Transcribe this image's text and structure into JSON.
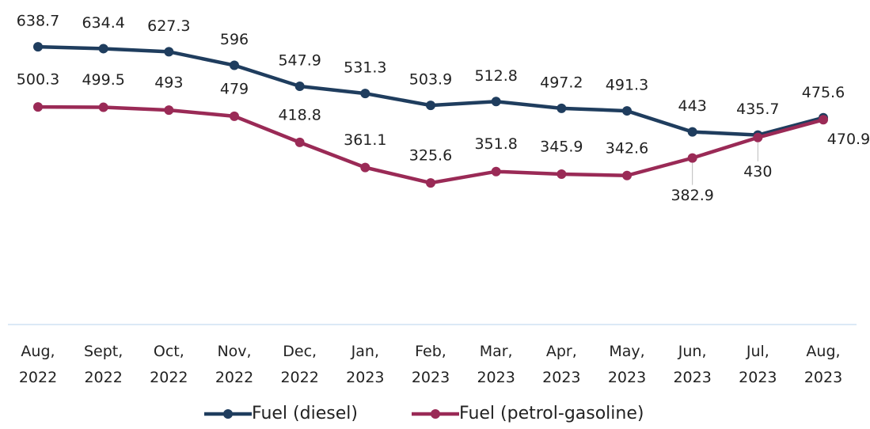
{
  "chart_data": {
    "type": "line",
    "categories": [
      "Aug, 2022",
      "Sept, 2022",
      "Oct, 2022",
      "Nov, 2022",
      "Dec, 2022",
      "Jan, 2023",
      "Feb, 2023",
      "Mar, 2023",
      "Apr, 2023",
      "May, 2023",
      "Jun, 2023",
      "Jul, 2023",
      "Aug, 2023"
    ],
    "series": [
      {
        "name": "Fuel (diesel)",
        "color": "#1f3d5e",
        "values": [
          638.7,
          634.4,
          627.3,
          596,
          547.9,
          531.3,
          503.9,
          512.8,
          497.2,
          491.3,
          443,
          435.7,
          475.6
        ]
      },
      {
        "name": "Fuel (petrol-gasoline)",
        "color": "#9a2a56",
        "values": [
          500.3,
          499.5,
          493,
          479,
          418.8,
          361.1,
          325.6,
          351.8,
          345.9,
          342.6,
          382.9,
          430,
          470.9
        ]
      }
    ],
    "ylim": [
      0,
      700
    ],
    "legend": "bottom"
  }
}
